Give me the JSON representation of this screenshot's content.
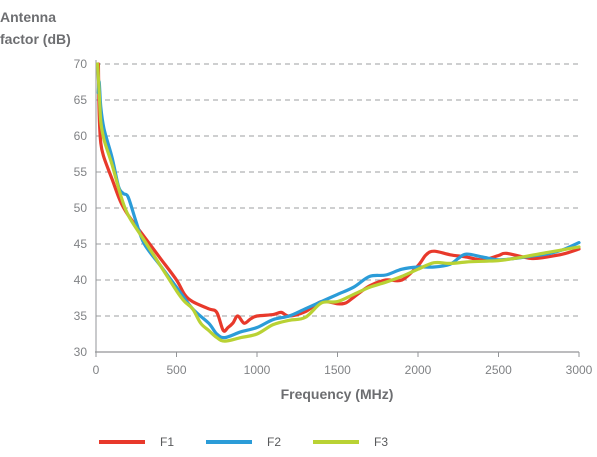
{
  "chart_data": {
    "type": "line",
    "title": "",
    "ylabel": [
      "Antenna",
      "factor (dB)"
    ],
    "xlabel": "Frequency (MHz)",
    "xlim": [
      0,
      3000
    ],
    "ylim": [
      30,
      70
    ],
    "x_ticks": [
      0,
      500,
      1000,
      1500,
      2000,
      2500,
      3000
    ],
    "y_ticks": [
      30,
      35,
      40,
      45,
      50,
      55,
      60,
      65,
      70
    ],
    "grid": "horizontal-dashed",
    "legend_position": "bottom-left",
    "series": [
      {
        "name": "F1",
        "color": "#e8392b",
        "points": [
          [
            15,
            70
          ],
          [
            20,
            63
          ],
          [
            30,
            59
          ],
          [
            50,
            57
          ],
          [
            100,
            54
          ],
          [
            150,
            51
          ],
          [
            200,
            49
          ],
          [
            300,
            46
          ],
          [
            400,
            43
          ],
          [
            500,
            40
          ],
          [
            550,
            38
          ],
          [
            600,
            37
          ],
          [
            700,
            36
          ],
          [
            750,
            35.5
          ],
          [
            790,
            33
          ],
          [
            820,
            33.4
          ],
          [
            850,
            34
          ],
          [
            880,
            35
          ],
          [
            920,
            34
          ],
          [
            960,
            34.6
          ],
          [
            1000,
            35
          ],
          [
            1100,
            35.2
          ],
          [
            1150,
            35.5
          ],
          [
            1200,
            35
          ],
          [
            1300,
            35.6
          ],
          [
            1400,
            37
          ],
          [
            1500,
            36.7
          ],
          [
            1550,
            36.8
          ],
          [
            1600,
            37.6
          ],
          [
            1700,
            39.2
          ],
          [
            1800,
            40
          ],
          [
            1900,
            40
          ],
          [
            2000,
            42
          ],
          [
            2050,
            43.5
          ],
          [
            2100,
            44
          ],
          [
            2200,
            43.5
          ],
          [
            2300,
            43.2
          ],
          [
            2400,
            42.8
          ],
          [
            2500,
            43.4
          ],
          [
            2550,
            43.7
          ],
          [
            2700,
            43
          ],
          [
            2800,
            43.2
          ],
          [
            2900,
            43.6
          ],
          [
            3000,
            44.3
          ]
        ]
      },
      {
        "name": "F2",
        "color": "#2b9cd8",
        "points": [
          [
            15,
            66
          ],
          [
            20,
            67.5
          ],
          [
            30,
            64
          ],
          [
            50,
            61
          ],
          [
            100,
            57
          ],
          [
            140,
            53
          ],
          [
            170,
            52
          ],
          [
            200,
            51.5
          ],
          [
            250,
            48
          ],
          [
            300,
            45
          ],
          [
            400,
            42
          ],
          [
            500,
            39
          ],
          [
            600,
            36
          ],
          [
            700,
            34
          ],
          [
            750,
            32.5
          ],
          [
            800,
            32
          ],
          [
            900,
            32.8
          ],
          [
            1000,
            33.4
          ],
          [
            1100,
            34.5
          ],
          [
            1200,
            35
          ],
          [
            1300,
            36
          ],
          [
            1400,
            37
          ],
          [
            1500,
            38
          ],
          [
            1600,
            39
          ],
          [
            1700,
            40.5
          ],
          [
            1800,
            40.7
          ],
          [
            1900,
            41.5
          ],
          [
            2000,
            41.8
          ],
          [
            2100,
            41.8
          ],
          [
            2200,
            42.2
          ],
          [
            2250,
            43
          ],
          [
            2300,
            43.6
          ],
          [
            2400,
            43.2
          ],
          [
            2500,
            42.8
          ],
          [
            2600,
            43
          ],
          [
            2700,
            43.3
          ],
          [
            2800,
            43.6
          ],
          [
            2900,
            44.2
          ],
          [
            3000,
            45.2
          ]
        ]
      },
      {
        "name": "F3",
        "color": "#b9d234",
        "points": [
          [
            10,
            70
          ],
          [
            20,
            66
          ],
          [
            30,
            62
          ],
          [
            50,
            59.5
          ],
          [
            100,
            56
          ],
          [
            150,
            52
          ],
          [
            200,
            49
          ],
          [
            300,
            45.5
          ],
          [
            400,
            42
          ],
          [
            500,
            38.5
          ],
          [
            550,
            37
          ],
          [
            600,
            36
          ],
          [
            650,
            34
          ],
          [
            700,
            33
          ],
          [
            750,
            32
          ],
          [
            800,
            31.5
          ],
          [
            900,
            32
          ],
          [
            1000,
            32.5
          ],
          [
            1100,
            33.8
          ],
          [
            1200,
            34.4
          ],
          [
            1300,
            34.8
          ],
          [
            1400,
            36.8
          ],
          [
            1500,
            37
          ],
          [
            1600,
            38
          ],
          [
            1700,
            39
          ],
          [
            1800,
            39.7
          ],
          [
            1900,
            40.5
          ],
          [
            2000,
            41.5
          ],
          [
            2100,
            42.4
          ],
          [
            2200,
            42.3
          ],
          [
            2300,
            42.5
          ],
          [
            2400,
            42.6
          ],
          [
            2500,
            42.7
          ],
          [
            2600,
            43
          ],
          [
            2700,
            43.4
          ],
          [
            2800,
            43.8
          ],
          [
            2900,
            44.2
          ],
          [
            3000,
            44.6
          ]
        ]
      }
    ]
  }
}
